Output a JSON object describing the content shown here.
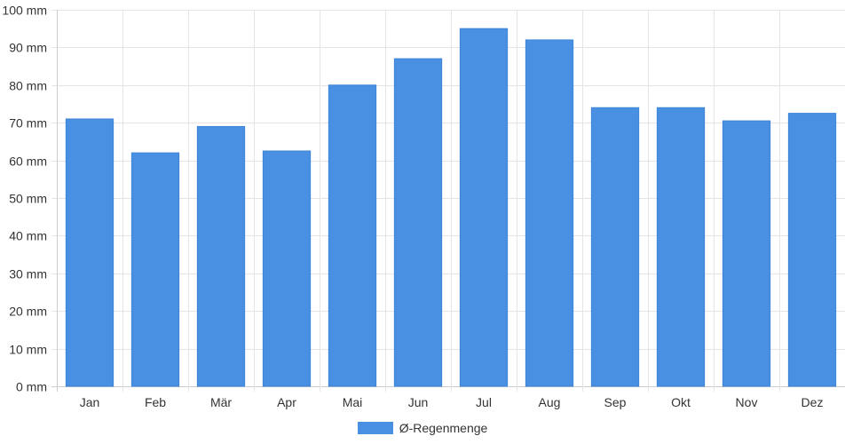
{
  "chart_data": {
    "type": "bar",
    "categories": [
      "Jan",
      "Feb",
      "Mär",
      "Apr",
      "Mai",
      "Jun",
      "Jul",
      "Aug",
      "Sep",
      "Okt",
      "Nov",
      "Dez"
    ],
    "series": [
      {
        "name": "Ø-Regenmenge",
        "values": [
          71,
          62,
          69,
          62.5,
          80,
          87,
          95,
          92,
          74,
          74,
          70.5,
          72.5
        ]
      }
    ],
    "y_ticks": [
      "0 mm",
      "10 mm",
      "20 mm",
      "30 mm",
      "40 mm",
      "50 mm",
      "60 mm",
      "70 mm",
      "80 mm",
      "90 mm",
      "100 mm"
    ],
    "ylim": [
      0,
      100
    ],
    "grid": true,
    "legend_position": "bottom",
    "colors": {
      "bar": "#4a90e2",
      "grid": "#e5e5e5",
      "axis": "#cccccc"
    }
  }
}
